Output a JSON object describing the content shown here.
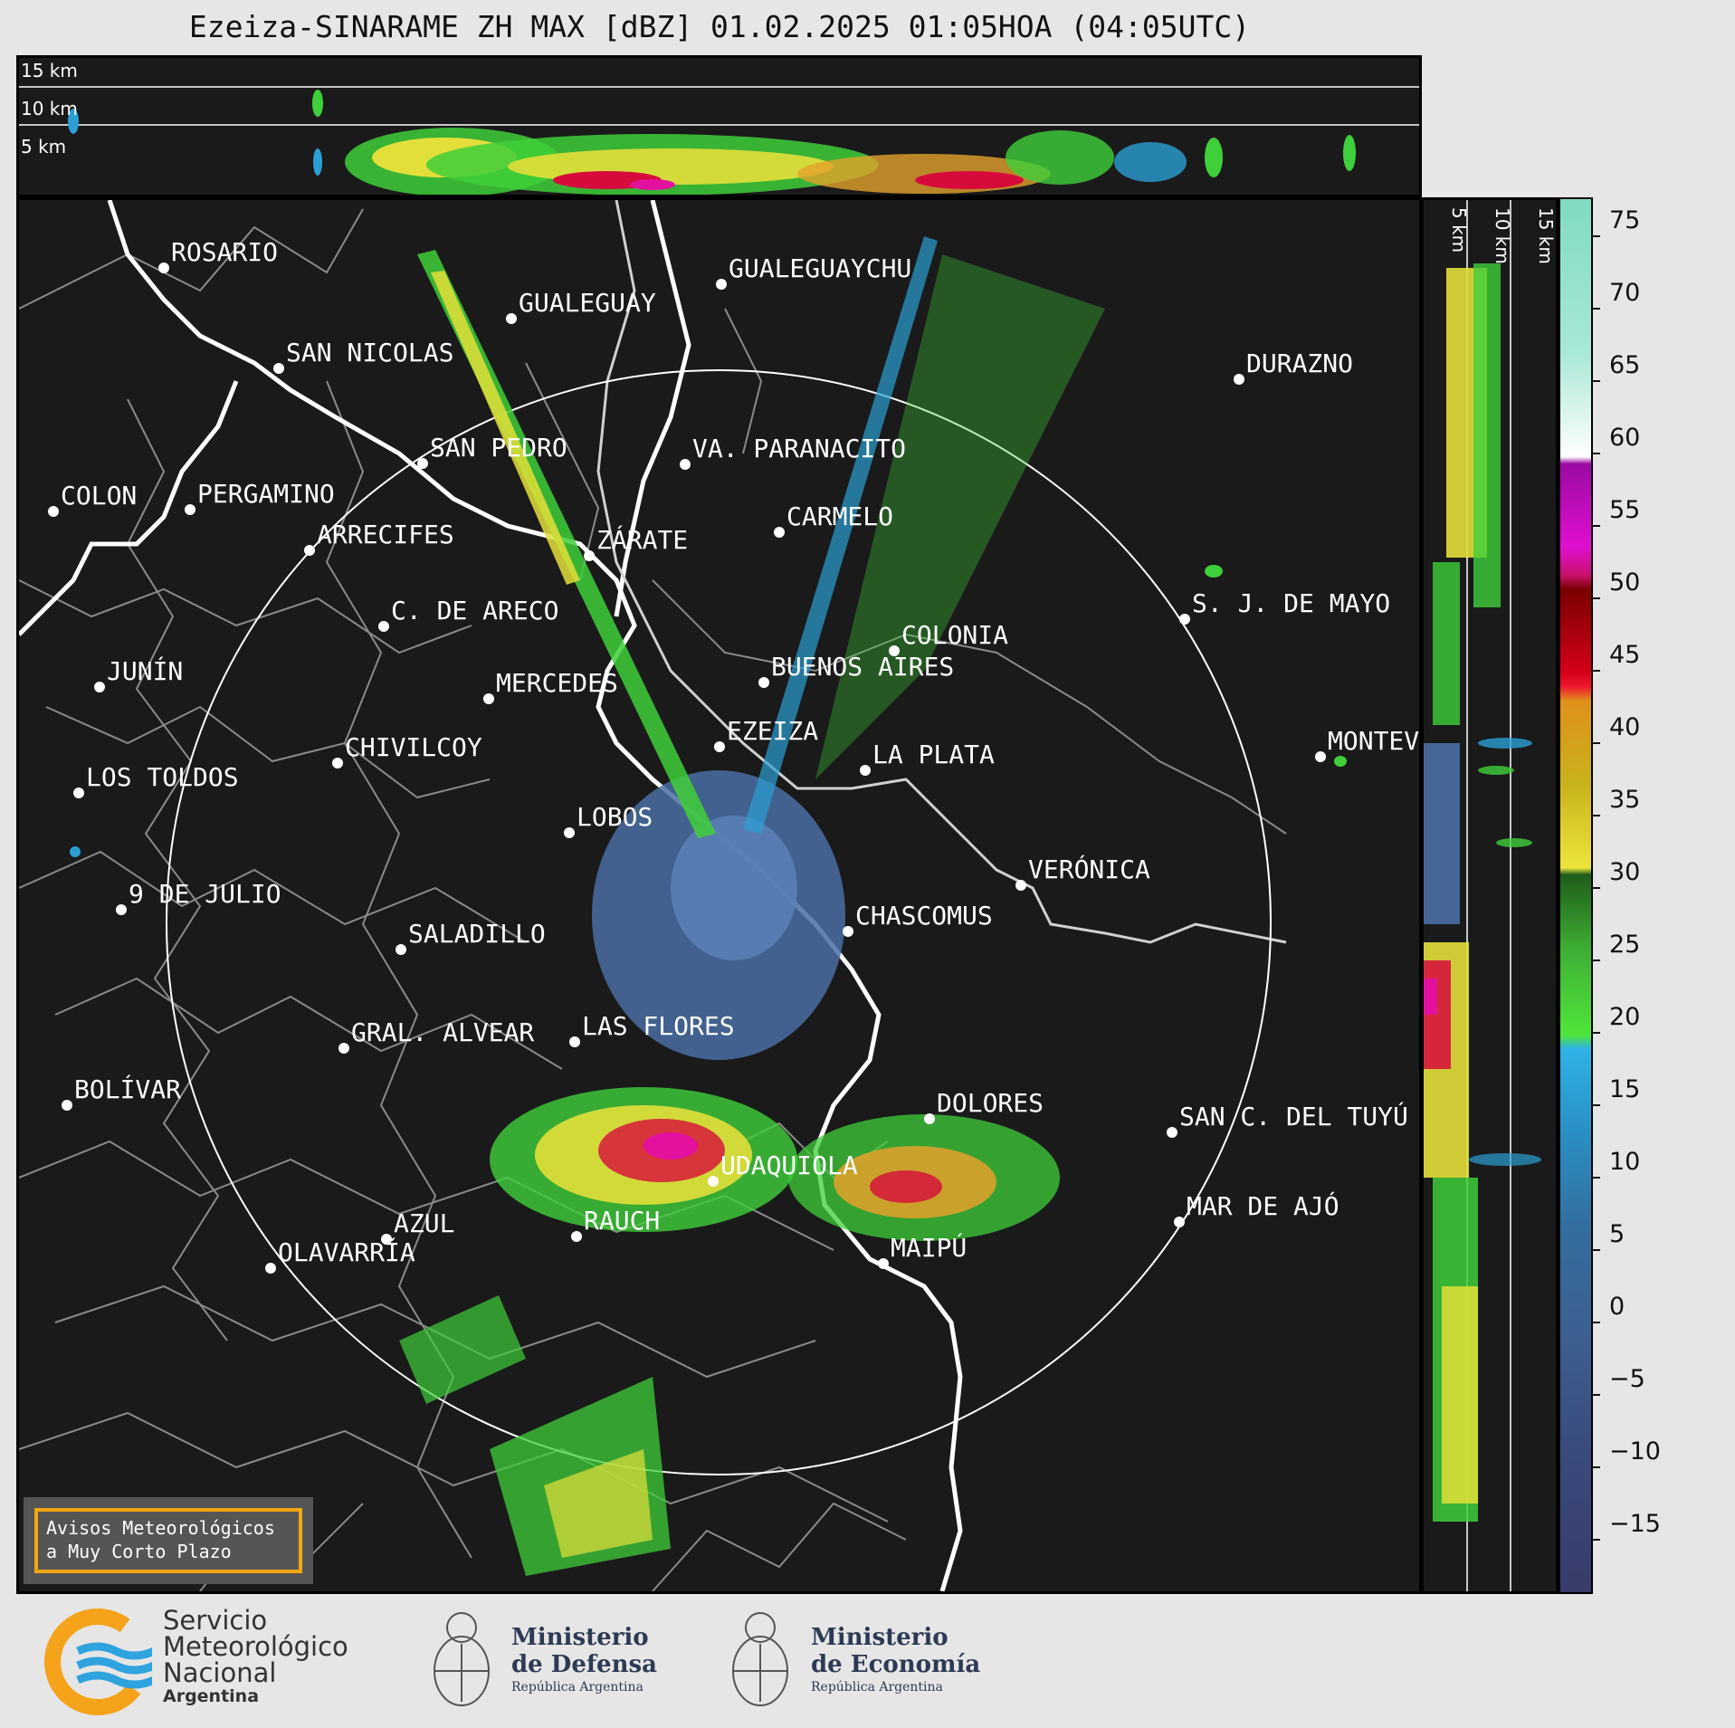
{
  "title": "Ezeiza-SINARAME ZH MAX [dBZ] 01.02.2025 01:05HOA (04:05UTC)",
  "top_panel": {
    "height_labels": [
      "15 km",
      "10 km",
      "5 km"
    ]
  },
  "side_panel": {
    "height_labels": [
      "5 km",
      "10 km",
      "15 km"
    ]
  },
  "cities": [
    {
      "name": "ROSARIO"
    },
    {
      "name": "GUALEGUAYCHU"
    },
    {
      "name": "GUALEGUAY"
    },
    {
      "name": "SAN NICOLAS"
    },
    {
      "name": "DURAZNO"
    },
    {
      "name": "SAN PEDRO"
    },
    {
      "name": "VA. PARANACITO"
    },
    {
      "name": "COLON"
    },
    {
      "name": "PERGAMINO"
    },
    {
      "name": "CARMELO"
    },
    {
      "name": "ARRECIFES"
    },
    {
      "name": "ZÁRATE"
    },
    {
      "name": "S. J. DE MAYO"
    },
    {
      "name": "C. DE ARECO"
    },
    {
      "name": "COLONIA"
    },
    {
      "name": "JUNÍN"
    },
    {
      "name": "BUENOS AIRES"
    },
    {
      "name": "MERCEDES"
    },
    {
      "name": "EZEIZA"
    },
    {
      "name": "MONTEVIDEO"
    },
    {
      "name": "CHIVILCOY"
    },
    {
      "name": "LA PLATA"
    },
    {
      "name": "LOS TOLDOS"
    },
    {
      "name": "LOBOS"
    },
    {
      "name": "VERÓNICA"
    },
    {
      "name": "9 DE JULIO"
    },
    {
      "name": "CHASCOMUS"
    },
    {
      "name": "SALADILLO"
    },
    {
      "name": "GRAL. ALVEAR"
    },
    {
      "name": "LAS FLORES"
    },
    {
      "name": "BOLÍVAR"
    },
    {
      "name": "DOLORES"
    },
    {
      "name": "SAN C. DEL TUYÚ"
    },
    {
      "name": "UDAQUIOLA"
    },
    {
      "name": "AZUL"
    },
    {
      "name": "RAUCH"
    },
    {
      "name": "MAR DE AJÓ"
    },
    {
      "name": "OLAVARRÍA"
    },
    {
      "name": "MAIPÚ"
    }
  ],
  "colorbar": {
    "unit": "dBZ",
    "ticks": [
      "75",
      "70",
      "65",
      "60",
      "55",
      "50",
      "45",
      "40",
      "35",
      "30",
      "25",
      "20",
      "15",
      "10",
      "5",
      "0",
      "−5",
      "−10",
      "−15"
    ]
  },
  "notice": {
    "line1": "Avisos Meteorológicos",
    "line2": "a Muy Corto Plazo"
  },
  "logos": {
    "smn": {
      "line1": "Servicio",
      "line2": "Meteorológico",
      "line3": "Nacional",
      "line4": "Argentina"
    },
    "defensa": {
      "line1": "Ministerio",
      "line2": "de Defensa",
      "line3": "República Argentina"
    },
    "economia": {
      "line1": "Ministerio",
      "line2": "de Economía",
      "line3": "República Argentina"
    }
  },
  "colors": {
    "background": "#1a1a1a",
    "coast": "#ffffff",
    "borders": "#8a8a8a",
    "smn_orange": "#f4a31a",
    "smn_blue": "#2fa3dd",
    "notice_border": "#f3a712"
  }
}
